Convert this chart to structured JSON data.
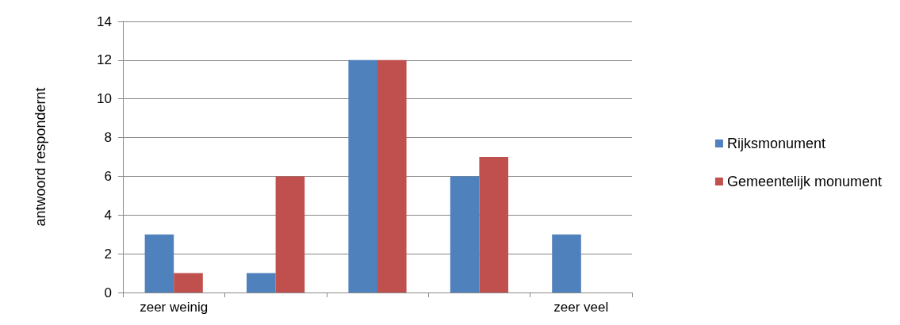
{
  "chart_data": {
    "type": "bar",
    "ylabel": "antwoord respondernt",
    "categories": [
      "zeer weinig",
      null,
      null,
      null,
      "zeer veel"
    ],
    "series": [
      {
        "name": "Rijksmonument",
        "color": "#4f81bd",
        "values": [
          3,
          1,
          12,
          6,
          3
        ]
      },
      {
        "name": "Gemeentelijk monument",
        "color": "#c0504d",
        "values": [
          1,
          6,
          12,
          7,
          0
        ]
      }
    ],
    "ylim": [
      0,
      14
    ],
    "yticks": [
      0,
      2,
      4,
      6,
      8,
      10,
      12,
      14
    ],
    "grid": "y",
    "legend": "right"
  }
}
